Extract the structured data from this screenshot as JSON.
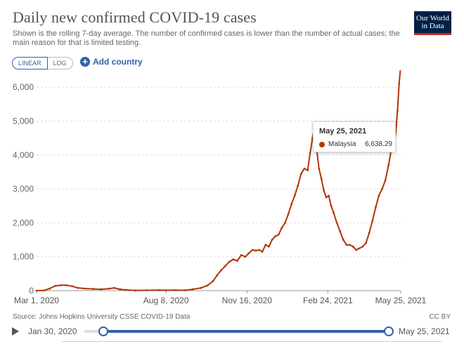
{
  "header": {
    "title": "Daily new confirmed COVID-19 cases",
    "subtitle": "Shown is the rolling 7-day average. The number of confirmed cases is lower than the number of actual cases; the main reason for that is limited testing.",
    "logo_line1": "Our World",
    "logo_line2": "in Data"
  },
  "controls": {
    "linear_label": "LINEAR",
    "log_label": "LOG",
    "add_country_label": "Add country"
  },
  "colors": {
    "series": "#b13507",
    "accent": "#3360a9",
    "logo_bg": "#002147"
  },
  "tooltip": {
    "date": "May 25, 2021",
    "country": "Malaysia",
    "value": "6,638.29"
  },
  "footer": {
    "source": "Source: Johns Hopkins University CSSE COVID-19 Data",
    "license": "CC BY"
  },
  "timeline": {
    "start_label": "Jan 30, 2020",
    "end_label": "May 25, 2021"
  },
  "chart_data": {
    "type": "line",
    "title": "Daily new confirmed COVID-19 cases",
    "xlabel": "",
    "ylabel": "",
    "ylim": [
      0,
      6500
    ],
    "yticks": [
      0,
      1000,
      2000,
      3000,
      4000,
      5000,
      6000
    ],
    "ytick_labels": [
      "0",
      "1,000",
      "2,000",
      "3,000",
      "4,000",
      "5,000",
      "6,000"
    ],
    "xlim": [
      "2020-03-01",
      "2021-05-25"
    ],
    "xticks": [
      "2020-03-01",
      "2020-08-08",
      "2020-11-16",
      "2021-02-24",
      "2021-05-25"
    ],
    "xtick_labels": [
      "Mar 1, 2020",
      "Aug 8, 2020",
      "Nov 16, 2020",
      "Feb 24, 2021",
      "May 25, 2021"
    ],
    "grid": "horizontal dashed",
    "series": [
      {
        "name": "Malaysia",
        "points": [
          [
            "2020-03-01",
            0
          ],
          [
            "2020-03-10",
            5
          ],
          [
            "2020-03-17",
            60
          ],
          [
            "2020-03-24",
            140
          ],
          [
            "2020-03-31",
            160
          ],
          [
            "2020-04-07",
            160
          ],
          [
            "2020-04-14",
            130
          ],
          [
            "2020-04-21",
            80
          ],
          [
            "2020-05-01",
            60
          ],
          [
            "2020-05-10",
            50
          ],
          [
            "2020-05-20",
            40
          ],
          [
            "2020-05-30",
            60
          ],
          [
            "2020-06-05",
            80
          ],
          [
            "2020-06-12",
            40
          ],
          [
            "2020-06-20",
            20
          ],
          [
            "2020-07-01",
            5
          ],
          [
            "2020-07-15",
            10
          ],
          [
            "2020-07-31",
            15
          ],
          [
            "2020-08-08",
            10
          ],
          [
            "2020-08-20",
            15
          ],
          [
            "2020-08-31",
            10
          ],
          [
            "2020-09-10",
            40
          ],
          [
            "2020-09-20",
            80
          ],
          [
            "2020-09-28",
            150
          ],
          [
            "2020-10-05",
            280
          ],
          [
            "2020-10-10",
            450
          ],
          [
            "2020-10-15",
            600
          ],
          [
            "2020-10-20",
            720
          ],
          [
            "2020-10-25",
            850
          ],
          [
            "2020-10-30",
            920
          ],
          [
            "2020-11-04",
            880
          ],
          [
            "2020-11-09",
            1050
          ],
          [
            "2020-11-14",
            1000
          ],
          [
            "2020-11-18",
            1100
          ],
          [
            "2020-11-23",
            1200
          ],
          [
            "2020-11-27",
            1180
          ],
          [
            "2020-12-01",
            1200
          ],
          [
            "2020-12-05",
            1150
          ],
          [
            "2020-12-09",
            1350
          ],
          [
            "2020-12-13",
            1300
          ],
          [
            "2020-12-17",
            1500
          ],
          [
            "2020-12-21",
            1600
          ],
          [
            "2020-12-25",
            1650
          ],
          [
            "2020-12-29",
            1850
          ],
          [
            "2021-01-02",
            2000
          ],
          [
            "2021-01-06",
            2250
          ],
          [
            "2021-01-10",
            2550
          ],
          [
            "2021-01-14",
            2800
          ],
          [
            "2021-01-18",
            3100
          ],
          [
            "2021-01-22",
            3450
          ],
          [
            "2021-01-26",
            3600
          ],
          [
            "2021-01-30",
            3550
          ],
          [
            "2021-02-02",
            4050
          ],
          [
            "2021-02-05",
            4500
          ],
          [
            "2021-02-07",
            4750
          ],
          [
            "2021-02-10",
            4200
          ],
          [
            "2021-02-13",
            3600
          ],
          [
            "2021-02-16",
            3300
          ],
          [
            "2021-02-19",
            2950
          ],
          [
            "2021-02-22",
            2750
          ],
          [
            "2021-02-25",
            2800
          ],
          [
            "2021-02-28",
            2500
          ],
          [
            "2021-03-03",
            2300
          ],
          [
            "2021-03-07",
            2000
          ],
          [
            "2021-03-11",
            1750
          ],
          [
            "2021-03-15",
            1500
          ],
          [
            "2021-03-19",
            1350
          ],
          [
            "2021-03-23",
            1350
          ],
          [
            "2021-03-27",
            1300
          ],
          [
            "2021-03-31",
            1200
          ],
          [
            "2021-04-04",
            1250
          ],
          [
            "2021-04-08",
            1300
          ],
          [
            "2021-04-12",
            1400
          ],
          [
            "2021-04-16",
            1700
          ],
          [
            "2021-04-20",
            2050
          ],
          [
            "2021-04-24",
            2450
          ],
          [
            "2021-04-28",
            2800
          ],
          [
            "2021-05-02",
            3000
          ],
          [
            "2021-05-06",
            3250
          ],
          [
            "2021-05-10",
            3700
          ],
          [
            "2021-05-14",
            4250
          ],
          [
            "2021-05-17",
            4300
          ],
          [
            "2021-05-19",
            4700
          ],
          [
            "2021-05-21",
            5300
          ],
          [
            "2021-05-23",
            6100
          ],
          [
            "2021-05-25",
            6638.29
          ]
        ]
      }
    ]
  }
}
